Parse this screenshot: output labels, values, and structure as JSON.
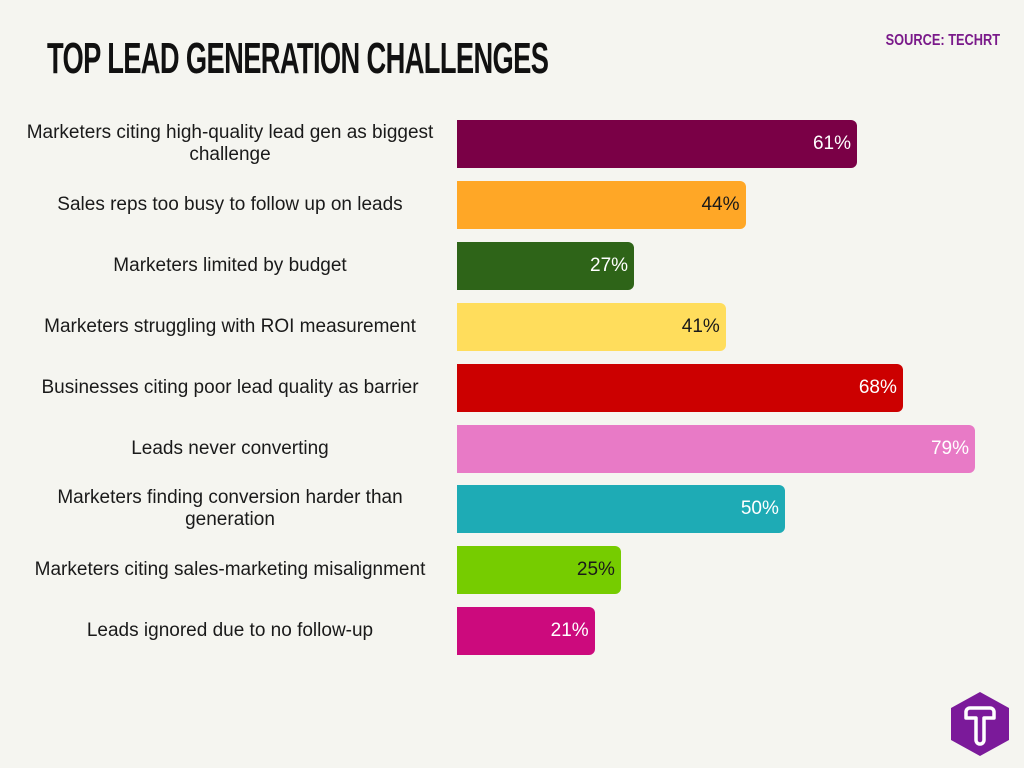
{
  "chart_data": {
    "type": "bar",
    "orientation": "horizontal",
    "title": "TOP LEAD GENERATION CHALLENGES",
    "source": "SOURCE: TECHRT",
    "xlim": [
      0,
      79
    ],
    "grid": false,
    "categories": [
      "Marketers citing high-quality lead gen as biggest challenge",
      "Sales reps too busy to follow up on leads",
      "Marketers limited by budget",
      "Marketers struggling with ROI measurement",
      "Businesses citing poor lead quality as barrier",
      "Leads never converting",
      "Marketers finding conversion harder than generation",
      "Marketers citing sales-marketing misalignment",
      "Leads ignored due to no follow-up"
    ],
    "values": [
      61,
      44,
      27,
      41,
      68,
      79,
      50,
      25,
      21
    ],
    "labels": [
      "61%",
      "44%",
      "27%",
      "41%",
      "68%",
      "79%",
      "50%",
      "25%",
      "21%"
    ],
    "colors": [
      "#7a0046",
      "#ffa726",
      "#2e6418",
      "#ffdd5c",
      "#cc0000",
      "#e87ac6",
      "#1eabb5",
      "#76cc00",
      "#cc0a7d"
    ],
    "label_colors": [
      "#ffffff",
      "#1a1a1a",
      "#ffffff",
      "#1a1a1a",
      "#ffffff",
      "#ffffff",
      "#ffffff",
      "#1a1a1a",
      "#ffffff"
    ]
  },
  "logo": {
    "letter": "T",
    "color": "#7b1a9a"
  }
}
